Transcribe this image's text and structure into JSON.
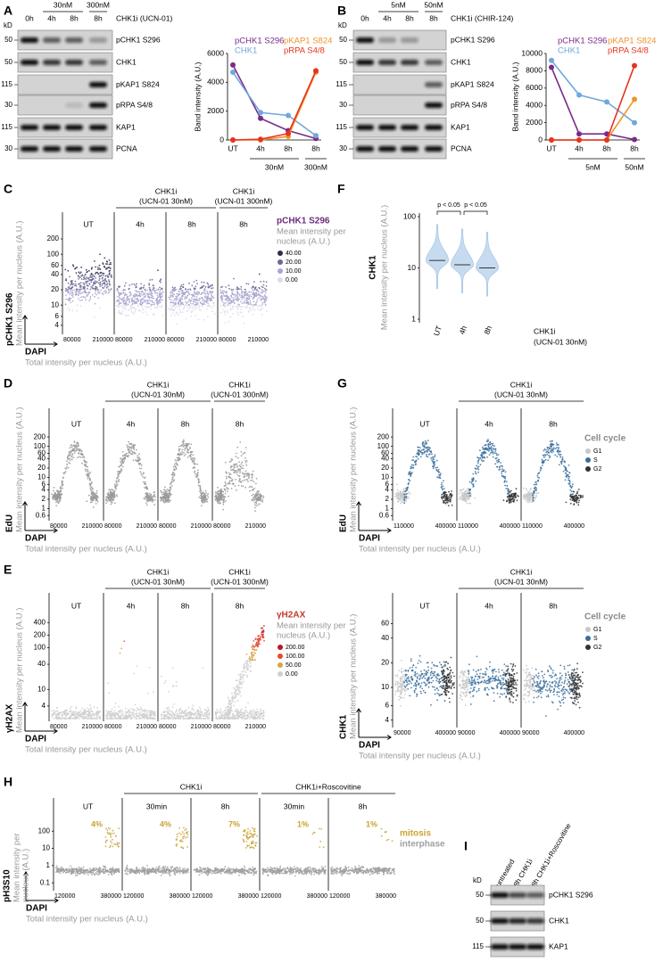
{
  "blots": [
    {
      "label": "A",
      "kd": "kD",
      "treatment": "CHK1i (UCN-01)",
      "doses": [
        "30nM",
        "300nM"
      ],
      "lanes": [
        "0h",
        "4h",
        "8h",
        "8h"
      ],
      "markers": [
        50,
        50,
        115,
        30,
        115,
        30
      ],
      "rows": [
        "pCHK1 S296",
        "CHK1",
        "pKAP1 S824",
        "pRPA S4/8",
        "KAP1",
        "PCNA"
      ]
    },
    {
      "label": "B",
      "kd": "kD",
      "treatment": "CHK1i (CHIR-124)",
      "doses": [
        "5nM",
        "50nM"
      ],
      "lanes": [
        "0h",
        "4h",
        "8h",
        "8h"
      ],
      "markers": [
        50,
        50,
        115,
        30,
        115,
        30
      ],
      "rows": [
        "pCHK1 S296",
        "CHK1",
        "pKAP1 S824",
        "pRPA S4/8",
        "KAP1",
        "PCNA"
      ]
    },
    {
      "label": "I",
      "kd": "kD",
      "lanes": [
        "untreated",
        "8h CHK1i",
        "8h CHK1i+Roscovitine"
      ],
      "markers": [
        50,
        50,
        115
      ],
      "rows": [
        "pCHK1 S296",
        "CHK1",
        "KAP1"
      ]
    }
  ],
  "chart_data": [
    {
      "type": "line",
      "ylabel": "Band intensity (A.U.)",
      "categories": [
        "UT",
        "4h",
        "8h",
        "8h"
      ],
      "groups": [
        "30nM",
        "300nM"
      ],
      "ylim": [
        0,
        6000
      ],
      "yticks": [
        0,
        2000,
        4000,
        6000
      ],
      "series": [
        {
          "name": "pCHK1 S296",
          "color": "#7a2a8c",
          "values": [
            5200,
            1500,
            650,
            100
          ]
        },
        {
          "name": "CHK1",
          "color": "#6fa8dc",
          "values": [
            4700,
            1900,
            1700,
            300
          ]
        },
        {
          "name": "pKAP1 S824",
          "color": "#f0932b",
          "values": [
            0,
            0,
            250,
            4700
          ]
        },
        {
          "name": "pRPA S4/8",
          "color": "#e8331f",
          "values": [
            0,
            50,
            450,
            4800
          ]
        }
      ]
    },
    {
      "type": "line",
      "ylabel": "Band intensity (A.U.)",
      "categories": [
        "UT",
        "4h",
        "8h",
        "8h"
      ],
      "groups": [
        "5nM",
        "50nM"
      ],
      "ylim": [
        0,
        10000
      ],
      "yticks": [
        0,
        2000,
        4000,
        6000,
        8000,
        10000
      ],
      "series": [
        {
          "name": "pCHK1 S296",
          "color": "#7a2a8c",
          "values": [
            8400,
            700,
            700,
            50
          ]
        },
        {
          "name": "CHK1",
          "color": "#6fa8dc",
          "values": [
            9200,
            5200,
            4400,
            2000
          ]
        },
        {
          "name": "pKAP1 S824",
          "color": "#f0932b",
          "values": [
            0,
            0,
            0,
            4700
          ]
        },
        {
          "name": "pRPA S4/8",
          "color": "#e8331f",
          "values": [
            0,
            0,
            0,
            8600
          ]
        }
      ]
    },
    {
      "type": "violin",
      "label": "F",
      "ylabel": "CHK1",
      "ysub": "Mean intensity per nucleus (A.U.)",
      "categories": [
        "UT",
        "4h",
        "8h"
      ],
      "values": [
        14,
        11.5,
        10
      ],
      "ylog": true,
      "ylim": [
        1,
        100
      ],
      "yticks": [
        1,
        10,
        100
      ],
      "color": "#c6dbef",
      "annotations": [
        "p < 0.05",
        "p < 0.05"
      ],
      "note": [
        "CHK1i",
        "(UCN-01 30nM)"
      ]
    }
  ],
  "scatter_panels": [
    {
      "label": "C",
      "ylabel": "pCHK1 S296",
      "ysub": [
        "Mean intensity per nucleus (A.U.)"
      ],
      "xlabel": "DAPI",
      "xsub": "Total intensity per nucleus (A.U.)",
      "ylog": true,
      "ylim": [
        3,
        300
      ],
      "yticks": [
        4,
        6,
        10,
        20,
        40,
        60,
        100,
        200
      ],
      "columns": [
        "UT",
        "4h",
        "8h",
        "8h"
      ],
      "headers": [
        [
          "CHK1i",
          "(UCN-01 30nM)"
        ],
        [
          "CHK1i",
          "(UCN-01 300nM)"
        ]
      ],
      "xticks": [
        80000,
        210000
      ],
      "colors": [
        "#2f2b4a",
        "#6b6795",
        "#a9a6cf",
        "#dcdbe9"
      ],
      "legend": {
        "title": "pCHK1 S296",
        "title_color": "#6b2d7e",
        "subtitle": [
          "Mean intensity per",
          "nucleus (A.U.)"
        ],
        "items": [
          "40.00",
          "20.00",
          "10.00",
          "0.00"
        ]
      }
    },
    {
      "label": "D",
      "ylabel": "EdU",
      "ysub": [
        "Mean intensity per nucleus (A.U.)"
      ],
      "xlabel": "DAPI",
      "xsub": "Total intensity per nucleus (A.U.)",
      "ylog": true,
      "ylim": [
        0.5,
        300
      ],
      "yticks": [
        0.6,
        1,
        2,
        4,
        6,
        10,
        20,
        40,
        60,
        100,
        200
      ],
      "columns": [
        "UT",
        "4h",
        "8h",
        "8h"
      ],
      "headers": [
        [
          "CHK1i",
          "(UCN-01 30nM)"
        ],
        [
          "CHK1i",
          "(UCN-01 300nM)"
        ]
      ],
      "xticks": [
        80000,
        210000
      ],
      "colors": [
        "#9a9a9a"
      ]
    },
    {
      "label": "G",
      "ylabel": "EdU",
      "ysub": [
        "Mean intensity per nucleus (A.U.)"
      ],
      "xlabel": "DAPI",
      "xsub": "Total intensity per nucleus (A.U.)",
      "ylog": true,
      "ylim": [
        0.5,
        300
      ],
      "yticks": [
        0.6,
        1,
        2,
        4,
        6,
        10,
        20,
        40,
        60,
        100,
        200
      ],
      "columns": [
        "UT",
        "4h",
        "8h"
      ],
      "headers": [
        [
          "CHK1i",
          "(UCN-01 30nM)"
        ]
      ],
      "xticks": [
        110000,
        400000
      ],
      "colors": [
        "#c8c8c8",
        "#3a6e9c",
        "#333333"
      ],
      "legend": {
        "title": "Cell cycle",
        "title_color": "#888888",
        "subtitle": [],
        "items": [
          "G1",
          "S",
          "G2"
        ]
      }
    },
    {
      "label": "E",
      "ylabel": "γH2AX",
      "ysub": [
        "Mean intensity per nucleus (A.U.)"
      ],
      "xlabel": "DAPI",
      "xsub": "Total intensity per nucleus (A.U.)",
      "ylog": true,
      "ylim": [
        2,
        600
      ],
      "yticks": [
        4,
        10,
        40,
        100,
        200,
        400
      ],
      "columns": [
        "UT",
        "4h",
        "8h",
        "8h"
      ],
      "headers": [
        [
          "CHK1i",
          "(UCN-01 30nM)"
        ],
        [
          "CHK1i",
          "(UCN-01 300nM)"
        ]
      ],
      "xticks": [
        80000,
        210000
      ],
      "colors": [
        "#b2182b",
        "#e34a33",
        "#d9a441",
        "#cfcfcf"
      ],
      "legend": {
        "title": "γH2AX",
        "title_color": "#c0392b",
        "subtitle": [
          "Mean intensity per",
          "nucleus (A.U.)"
        ],
        "items": [
          "200.00",
          "100.00",
          "50.00",
          "0.00"
        ]
      }
    },
    {
      "ylabel": "CHK1",
      "ysub": [
        "Mean intensity per nucleus (A.U.)"
      ],
      "xlabel": "DAPI",
      "xsub": "Total intensity per nucleus (A.U.)",
      "ylog": true,
      "ylim": [
        3.5,
        80
      ],
      "yticks": [
        4,
        6,
        10,
        20,
        40,
        60
      ],
      "columns": [
        "UT",
        "4h",
        "8h"
      ],
      "headers": [
        [
          "CHK1i",
          "(UCN-01 30nM)"
        ]
      ],
      "xticks": [
        90000,
        400000
      ],
      "colors": [
        "#c8c8c8",
        "#3a6e9c",
        "#333333"
      ],
      "legend": {
        "title": "Cell cycle",
        "title_color": "#888888",
        "subtitle": [],
        "items": [
          "G1",
          "S",
          "G2"
        ]
      }
    },
    {
      "label": "H",
      "ylabel": "pH3S10",
      "ysub": [
        "Mean intensity per",
        "nucleus (A.U.)"
      ],
      "xlabel": "DAPI",
      "xsub": "Total intensity per nucleus (A.U.)",
      "ylog": true,
      "ylim": [
        0.05,
        300
      ],
      "yticks": [
        0.1,
        1,
        10,
        100
      ],
      "columns": [
        "UT",
        "30min",
        "8h",
        "30min",
        "8h"
      ],
      "headers": [
        [
          "CHK1i"
        ],
        [
          "CHK1i+Roscovitine"
        ]
      ],
      "xticks": [
        120000,
        380000
      ],
      "annotations": [
        "4%",
        "4%",
        "7%",
        "1%",
        "1%"
      ],
      "colors": [
        "#c9a332",
        "#a0a0a0"
      ],
      "legend": {
        "title": "mitosis",
        "title_color": "#c9a332",
        "subtitle": [],
        "items": [
          "interphase"
        ],
        "item_colors": [
          "#a0a0a0"
        ]
      }
    }
  ]
}
